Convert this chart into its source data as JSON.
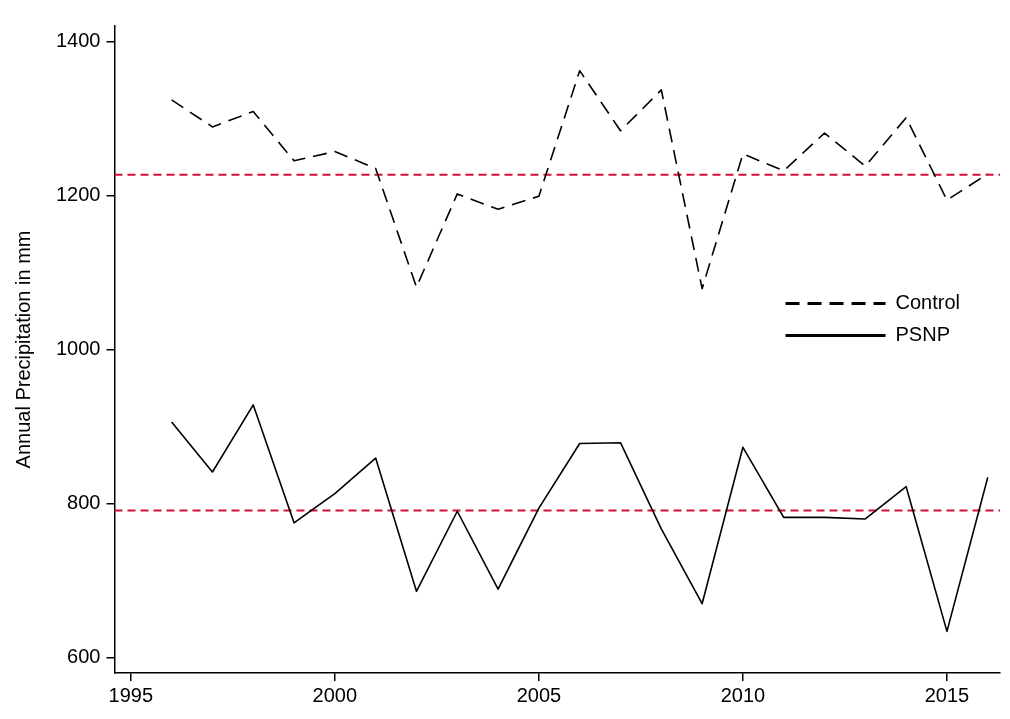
{
  "chart_data": {
    "type": "line",
    "ylabel": "Annual Precipitation in mm",
    "x": [
      1996,
      1997,
      1998,
      1999,
      2000,
      2001,
      2002,
      2003,
      2004,
      2005,
      2006,
      2007,
      2008,
      2009,
      2010,
      2011,
      2012,
      2013,
      2014,
      2015,
      2016
    ],
    "series": [
      {
        "name": "Control",
        "color": "#000000",
        "line_style": "dashed",
        "values": [
          1324,
          1289,
          1309,
          1245,
          1257,
          1235,
          1081,
          1202,
          1182,
          1199,
          1362,
          1284,
          1337,
          1079,
          1254,
          1232,
          1281,
          1238,
          1301,
          1194,
          1228
        ]
      },
      {
        "name": "PSNP",
        "color": "#000000",
        "line_style": "solid",
        "values": [
          906,
          841,
          928,
          775,
          813,
          859,
          686,
          790,
          689,
          794,
          878,
          879,
          767,
          670,
          873,
          782,
          782,
          780,
          822,
          634,
          834
        ]
      }
    ],
    "xlim": [
      1994.6,
      2016.3
    ],
    "xticks": [
      1995,
      2000,
      2005,
      2010,
      2015
    ],
    "ylim": [
      580,
      1420
    ],
    "yticks": [
      600,
      800,
      1000,
      1200,
      1400
    ],
    "ref_lines": [
      {
        "axis": "y",
        "value": 1227,
        "color": "#d0103a",
        "line_style": "dashed"
      },
      {
        "axis": "y",
        "value": 791,
        "color": "#d0103a",
        "line_style": "dashed"
      }
    ],
    "grid": false,
    "legend": "right",
    "marker": "none"
  }
}
